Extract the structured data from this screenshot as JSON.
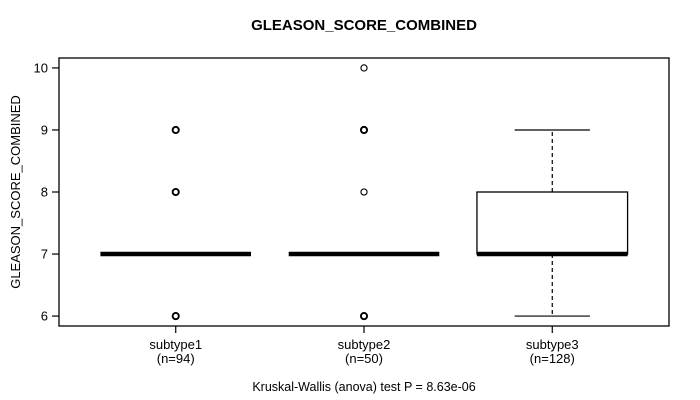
{
  "chart_data": {
    "type": "boxplot",
    "title": "GLEASON_SCORE_COMBINED",
    "ylabel": "GLEASON_SCORE_COMBINED",
    "xlabel": "",
    "caption": "Kruskal-Wallis (anova) test P = 8.63e-06",
    "ylim": [
      5.84,
      10.16
    ],
    "yticks": [
      6,
      7,
      8,
      9,
      10
    ],
    "xlim": [
      0.38,
      3.62
    ],
    "grid": false,
    "legend": null,
    "colors": {
      "stroke": "#000000",
      "box_fill": "#ffffff",
      "background": "#ffffff"
    },
    "groups": [
      {
        "label": "subtype1",
        "sublabel": "(n=94)",
        "n": 94,
        "position": 1,
        "stats": {
          "median": 7,
          "q1": 7,
          "q3": 7,
          "whisker_low": 7,
          "whisker_high": 7
        },
        "outliers": [
          {
            "value": 6,
            "heavy": true
          },
          {
            "value": 8,
            "heavy": true
          },
          {
            "value": 9,
            "heavy": true
          }
        ]
      },
      {
        "label": "subtype2",
        "sublabel": "(n=50)",
        "n": 50,
        "position": 2,
        "stats": {
          "median": 7,
          "q1": 7,
          "q3": 7,
          "whisker_low": 7,
          "whisker_high": 7
        },
        "outliers": [
          {
            "value": 6,
            "heavy": true
          },
          {
            "value": 8,
            "heavy": false
          },
          {
            "value": 9,
            "heavy": true
          },
          {
            "value": 10,
            "heavy": false
          }
        ]
      },
      {
        "label": "subtype3",
        "sublabel": "(n=128)",
        "n": 128,
        "position": 3,
        "stats": {
          "median": 7,
          "q1": 7,
          "q3": 8,
          "whisker_low": 6,
          "whisker_high": 9
        },
        "outliers": []
      }
    ]
  }
}
